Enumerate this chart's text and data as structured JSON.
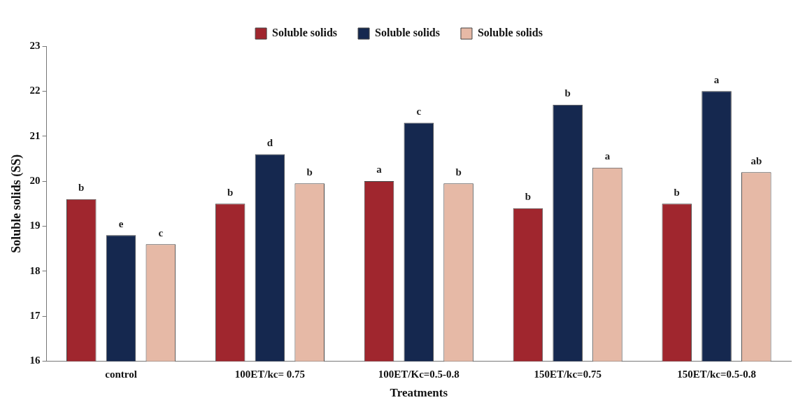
{
  "chart_data": {
    "type": "bar",
    "xlabel": "Treatments",
    "ylabel": "Soluble solids (SS)",
    "categories": [
      "control",
      "100ET/kc= 0.75",
      "100ET/Kc=0.5-0.8",
      "150ET/kc=0.75",
      "150ET/kc=0.5-0.8"
    ],
    "series": [
      {
        "name": "Soluble solids",
        "color": "#a0262e",
        "values": [
          19.6,
          19.5,
          20.0,
          19.4,
          19.5
        ],
        "value_labels": [
          "b",
          "b",
          "a",
          "b",
          "b"
        ]
      },
      {
        "name": "Soluble solids",
        "color": "#15284f",
        "values": [
          18.8,
          20.6,
          21.3,
          21.7,
          22.0
        ],
        "value_labels": [
          "e",
          "d",
          "c",
          "b",
          "a"
        ]
      },
      {
        "name": "Soluble solids",
        "color": "#e6b9a6",
        "values": [
          18.6,
          19.95,
          19.95,
          20.3,
          20.2
        ],
        "value_labels": [
          "c",
          "b",
          "b",
          "a",
          "ab"
        ]
      }
    ],
    "ylim": [
      16,
      23
    ],
    "yticks": [
      16,
      17,
      18,
      19,
      20,
      21,
      22,
      23
    ],
    "grid": false,
    "legend": "top"
  }
}
